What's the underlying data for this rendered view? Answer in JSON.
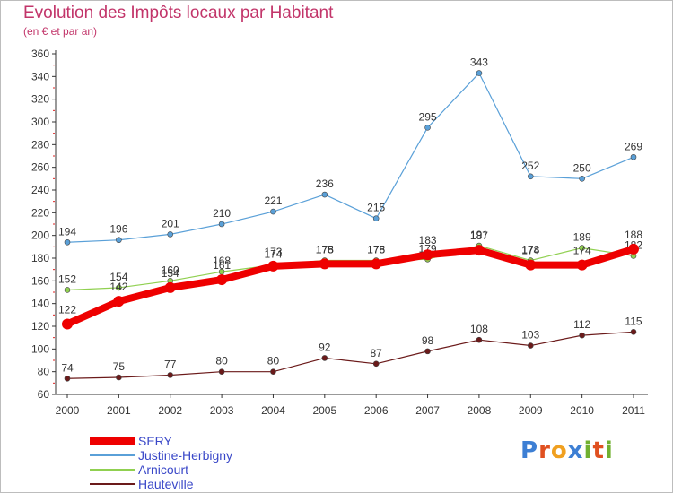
{
  "header": {
    "title": "Evolution des Impôts locaux par Habitant",
    "subtitle": "(en € et par an)"
  },
  "chart_data": {
    "type": "line",
    "x": [
      "2000",
      "2001",
      "2002",
      "2003",
      "2004",
      "2005",
      "2006",
      "2007",
      "2008",
      "2009",
      "2010",
      "2011"
    ],
    "ylim": [
      60,
      360
    ],
    "yticks": [
      60,
      80,
      100,
      120,
      140,
      160,
      180,
      200,
      220,
      240,
      260,
      280,
      300,
      320,
      340,
      360
    ],
    "grid": false,
    "legend_position": "bottom-left",
    "series": [
      {
        "name": "Hauteville",
        "color": "#6b1a1a",
        "values": [
          74,
          75,
          77,
          80,
          80,
          92,
          87,
          98,
          108,
          103,
          112,
          115
        ],
        "labels": [
          "74",
          "75",
          "77",
          "80",
          "80",
          "92",
          "87",
          "98",
          "108",
          "103",
          "112",
          "115"
        ]
      },
      {
        "name": "Arnicourt",
        "color": "#90d050",
        "values": [
          152,
          154,
          160,
          168,
          174,
          178,
          178,
          179,
          191,
          178,
          189,
          182
        ],
        "labels": [
          "152",
          "154",
          "160",
          "168",
          "174",
          "178",
          "178",
          "179",
          "191",
          "178",
          "189",
          "182"
        ]
      },
      {
        "name": "Justine-Herbigny",
        "color": "#5aa0d8",
        "values": [
          194,
          196,
          201,
          210,
          221,
          236,
          215,
          295,
          343,
          252,
          250,
          269
        ],
        "labels": [
          "194",
          "196",
          "201",
          "210",
          "221",
          "236",
          "215",
          "295",
          "343",
          "252",
          "250",
          "269"
        ]
      },
      {
        "name": "SERY",
        "color": "#ee0000",
        "values": [
          122,
          142,
          154,
          161,
          173,
          175,
          175,
          183,
          187,
          174,
          174,
          188
        ],
        "labels": [
          "122",
          "142",
          "154",
          "161",
          "173",
          "175",
          "175",
          "183",
          "187",
          "174",
          "174",
          "188"
        ]
      }
    ]
  },
  "legend": [
    {
      "label": "SERY",
      "color": "#ee0000"
    },
    {
      "label": "Justine-Herbigny",
      "color": "#5aa0d8"
    },
    {
      "label": "Arnicourt",
      "color": "#90d050"
    },
    {
      "label": "Hauteville",
      "color": "#6b1a1a"
    }
  ],
  "logo": {
    "text": "Proxiti",
    "colors": [
      "#3d7fd4",
      "#e05020",
      "#f0a020",
      "#3d7fd4",
      "#70b030",
      "#e05020",
      "#70b030"
    ]
  }
}
